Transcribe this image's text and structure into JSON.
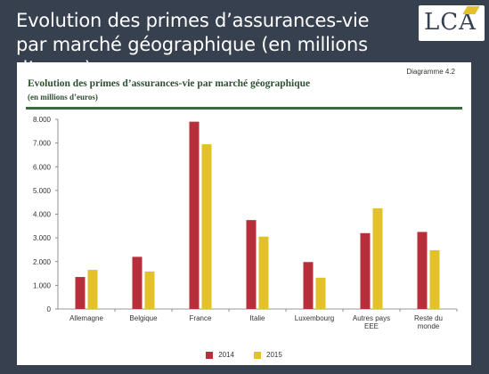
{
  "slide": {
    "title_line1": "Evolution des primes d’assurances-vie",
    "title_line2": "par marché géographique (en millions d’euros)"
  },
  "logo": {
    "text": "LCA",
    "accent_color": "#e2c12a"
  },
  "figure": {
    "label": "Diagramme 4.2"
  },
  "colors": {
    "2014": "#b5303a",
    "2015": "#e2c12a",
    "rule": "#3c6b40",
    "title": "#2d4f32"
  },
  "chart_data": {
    "type": "bar",
    "title": "Evolution des primes d’assurances-vie par marché géographique",
    "subtitle": "(en millions d’euros)",
    "categories": [
      [
        "Allemagne"
      ],
      [
        "Belgique"
      ],
      [
        "France"
      ],
      [
        "Italie"
      ],
      [
        "Luxembourg"
      ],
      [
        "Autres pays",
        "EEE"
      ],
      [
        "Reste du",
        "monde"
      ]
    ],
    "series": [
      {
        "name": "2014",
        "values": [
          1350,
          2200,
          7900,
          3750,
          1980,
          3200,
          3250
        ]
      },
      {
        "name": "2015",
        "values": [
          1650,
          1580,
          6950,
          3050,
          1320,
          4250,
          2480
        ]
      }
    ],
    "ylim": [
      0,
      8000
    ],
    "yticks": [
      "0",
      "1.000",
      "2.000",
      "3.000",
      "4.000",
      "5.000",
      "6.000",
      "7.000",
      "8.000"
    ],
    "ytick_values": [
      0,
      1000,
      2000,
      3000,
      4000,
      5000,
      6000,
      7000,
      8000
    ],
    "grid": false,
    "legend": "bottom"
  }
}
